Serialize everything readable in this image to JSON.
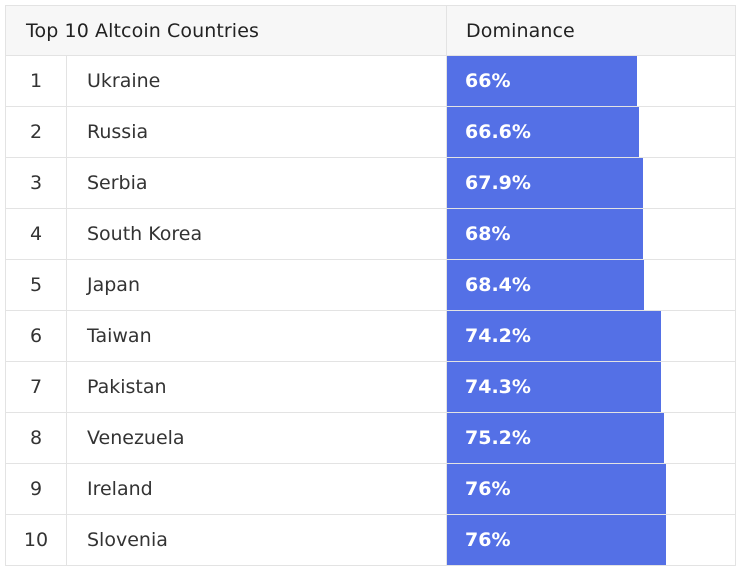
{
  "chart_data": {
    "type": "table",
    "title": "Top 10 Altcoin Countries",
    "columns": [
      "Top 10 Altcoin Countries",
      "Dominance"
    ],
    "colors": {
      "bar": "#5470e6",
      "header_bg": "#f7f7f7",
      "border": "#e3e3e3",
      "text": "#333333",
      "bar_text": "#ffffff"
    },
    "rows": [
      {
        "rank": "1",
        "country": "Ukraine",
        "value": 66,
        "label": "66%"
      },
      {
        "rank": "2",
        "country": "Russia",
        "value": 66.6,
        "label": "66.6%"
      },
      {
        "rank": "3",
        "country": "Serbia",
        "value": 67.9,
        "label": "67.9%"
      },
      {
        "rank": "4",
        "country": "South Korea",
        "value": 68,
        "label": "68%"
      },
      {
        "rank": "5",
        "country": "Japan",
        "value": 68.4,
        "label": "68.4%"
      },
      {
        "rank": "6",
        "country": "Taiwan",
        "value": 74.2,
        "label": "74.2%"
      },
      {
        "rank": "7",
        "country": "Pakistan",
        "value": 74.3,
        "label": "74.3%"
      },
      {
        "rank": "8",
        "country": "Venezuela",
        "value": 75.2,
        "label": "75.2%"
      },
      {
        "rank": "9",
        "country": "Ireland",
        "value": 76,
        "label": "76%"
      },
      {
        "rank": "10",
        "country": "Slovenia",
        "value": 76,
        "label": "76%"
      }
    ]
  }
}
